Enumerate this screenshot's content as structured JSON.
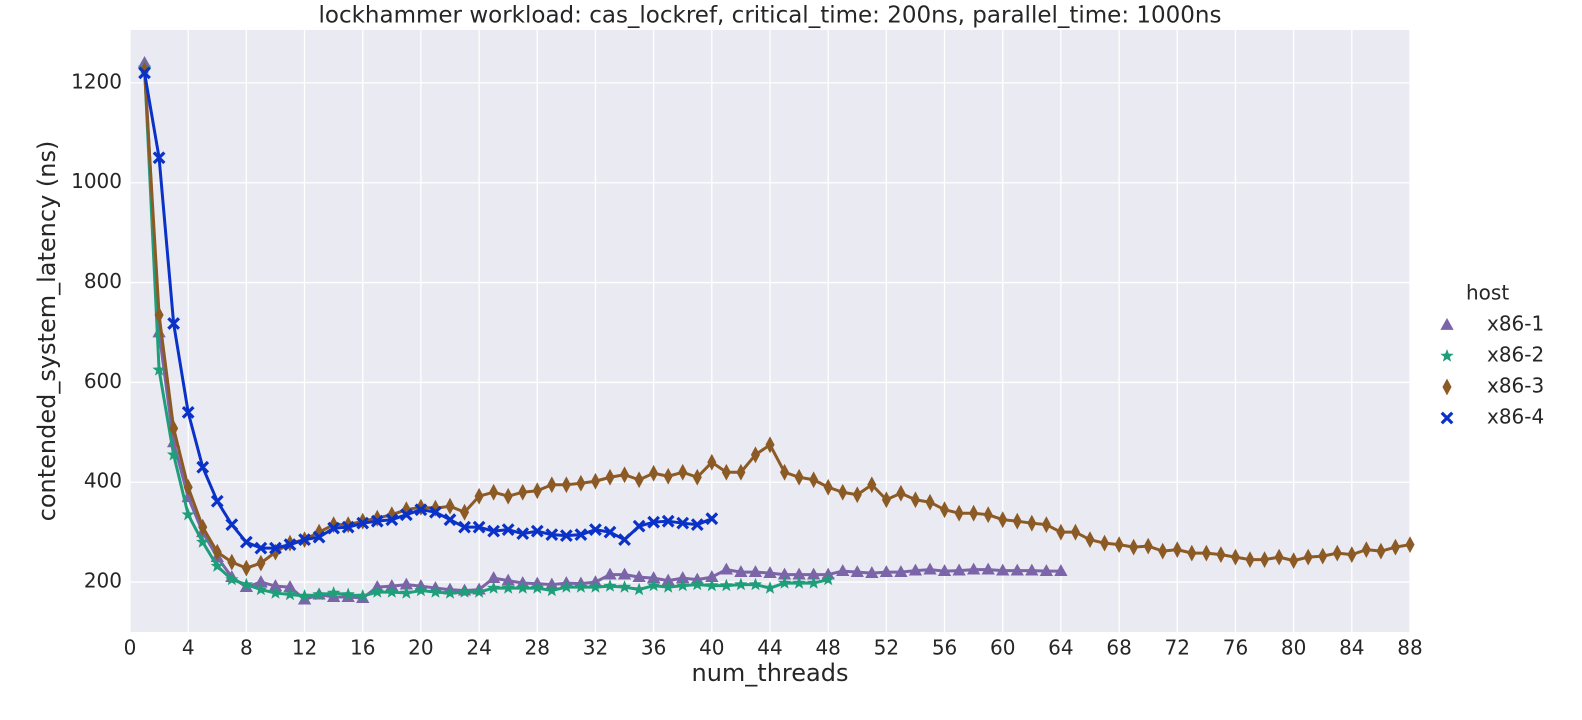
{
  "chart_data": {
    "type": "line",
    "title": "lockhammer workload: cas_lockref, critical_time: 200ns, parallel_time: 1000ns",
    "xlabel": "num_threads",
    "ylabel": "contended_system_latency (ns)",
    "legend_title": "host",
    "legend": "right",
    "grid": true,
    "xlim": [
      0,
      88
    ],
    "ylim": [
      100,
      1306
    ],
    "xticks": [
      0,
      4,
      8,
      12,
      16,
      20,
      24,
      28,
      32,
      36,
      40,
      44,
      48,
      52,
      56,
      60,
      64,
      68,
      72,
      76,
      80,
      84,
      88
    ],
    "yticks": [
      200,
      400,
      600,
      800,
      1000,
      1200
    ],
    "series": [
      {
        "name": "x86-1",
        "color": "#7b64a8",
        "marker": "triangle",
        "x": [
          1,
          2,
          3,
          4,
          5,
          6,
          7,
          8,
          9,
          10,
          11,
          12,
          13,
          14,
          15,
          16,
          17,
          18,
          19,
          20,
          21,
          22,
          23,
          24,
          25,
          26,
          27,
          28,
          29,
          30,
          31,
          32,
          33,
          34,
          35,
          36,
          37,
          38,
          39,
          40,
          41,
          42,
          43,
          44,
          45,
          46,
          47,
          48,
          49,
          50,
          51,
          52,
          53,
          54,
          55,
          56,
          57,
          58,
          59,
          60,
          61,
          62,
          63,
          64
        ],
        "values": [
          1240,
          700,
          480,
          370,
          300,
          250,
          210,
          190,
          200,
          192,
          190,
          165,
          175,
          170,
          170,
          168,
          190,
          192,
          195,
          192,
          188,
          185,
          183,
          185,
          208,
          203,
          198,
          197,
          195,
          198,
          197,
          200,
          215,
          215,
          210,
          208,
          203,
          208,
          205,
          210,
          225,
          220,
          220,
          218,
          215,
          215,
          215,
          215,
          222,
          220,
          218,
          220,
          220,
          223,
          225,
          222,
          223,
          225,
          225,
          223,
          223,
          223,
          222,
          222
        ]
      },
      {
        "name": "x86-2",
        "color": "#1f9e7a",
        "marker": "star",
        "x": [
          1,
          2,
          3,
          4,
          5,
          6,
          7,
          8,
          9,
          10,
          11,
          12,
          13,
          14,
          15,
          16,
          17,
          18,
          19,
          20,
          21,
          22,
          23,
          24,
          25,
          26,
          27,
          28,
          29,
          30,
          31,
          32,
          33,
          34,
          35,
          36,
          37,
          38,
          39,
          40,
          41,
          42,
          43,
          44,
          45,
          46,
          47,
          48
        ],
        "values": [
          1230,
          625,
          455,
          335,
          280,
          232,
          205,
          195,
          185,
          178,
          175,
          172,
          175,
          178,
          175,
          172,
          180,
          180,
          178,
          183,
          180,
          178,
          180,
          180,
          188,
          188,
          188,
          188,
          183,
          190,
          190,
          190,
          192,
          190,
          185,
          193,
          190,
          193,
          195,
          193,
          193,
          195,
          195,
          188,
          198,
          198,
          198,
          205
        ]
      },
      {
        "name": "x86-3",
        "color": "#8c5a24",
        "marker": "diamond",
        "x": [
          1,
          2,
          3,
          4,
          5,
          6,
          7,
          8,
          9,
          10,
          11,
          12,
          13,
          14,
          15,
          16,
          17,
          18,
          19,
          20,
          21,
          22,
          23,
          24,
          25,
          26,
          27,
          28,
          29,
          30,
          31,
          32,
          33,
          34,
          35,
          36,
          37,
          38,
          39,
          40,
          41,
          42,
          43,
          44,
          45,
          46,
          47,
          48,
          49,
          50,
          51,
          52,
          53,
          54,
          55,
          56,
          57,
          58,
          59,
          60,
          61,
          62,
          63,
          64,
          65,
          66,
          67,
          68,
          69,
          70,
          71,
          72,
          73,
          74,
          75,
          76,
          77,
          78,
          79,
          80,
          81,
          82,
          83,
          84,
          85,
          86,
          87,
          88
        ],
        "values": [
          1225,
          735,
          508,
          390,
          310,
          260,
          240,
          228,
          238,
          260,
          278,
          285,
          300,
          315,
          315,
          322,
          328,
          335,
          345,
          350,
          348,
          352,
          340,
          372,
          380,
          372,
          380,
          383,
          395,
          395,
          398,
          402,
          410,
          415,
          405,
          418,
          412,
          420,
          410,
          440,
          420,
          420,
          455,
          475,
          420,
          410,
          405,
          390,
          380,
          375,
          395,
          365,
          378,
          365,
          360,
          345,
          338,
          338,
          335,
          325,
          322,
          318,
          315,
          300,
          300,
          285,
          278,
          275,
          270,
          272,
          262,
          265,
          258,
          258,
          255,
          250,
          245,
          245,
          250,
          243,
          250,
          252,
          258,
          255,
          265,
          262,
          270,
          275
        ]
      },
      {
        "name": "x86-4",
        "color": "#0a32c8",
        "marker": "x",
        "x": [
          1,
          2,
          3,
          4,
          5,
          6,
          7,
          8,
          9,
          10,
          11,
          12,
          13,
          14,
          15,
          16,
          17,
          18,
          19,
          20,
          21,
          22,
          23,
          24,
          25,
          26,
          27,
          28,
          29,
          30,
          31,
          32,
          33,
          34,
          35,
          36,
          37,
          38,
          39,
          40
        ],
        "values": [
          1220,
          1050,
          718,
          540,
          430,
          362,
          315,
          280,
          268,
          268,
          275,
          285,
          290,
          308,
          310,
          318,
          322,
          325,
          335,
          345,
          340,
          325,
          310,
          310,
          302,
          305,
          297,
          302,
          295,
          293,
          295,
          305,
          300,
          285,
          312,
          320,
          322,
          318,
          315,
          327
        ]
      }
    ]
  }
}
